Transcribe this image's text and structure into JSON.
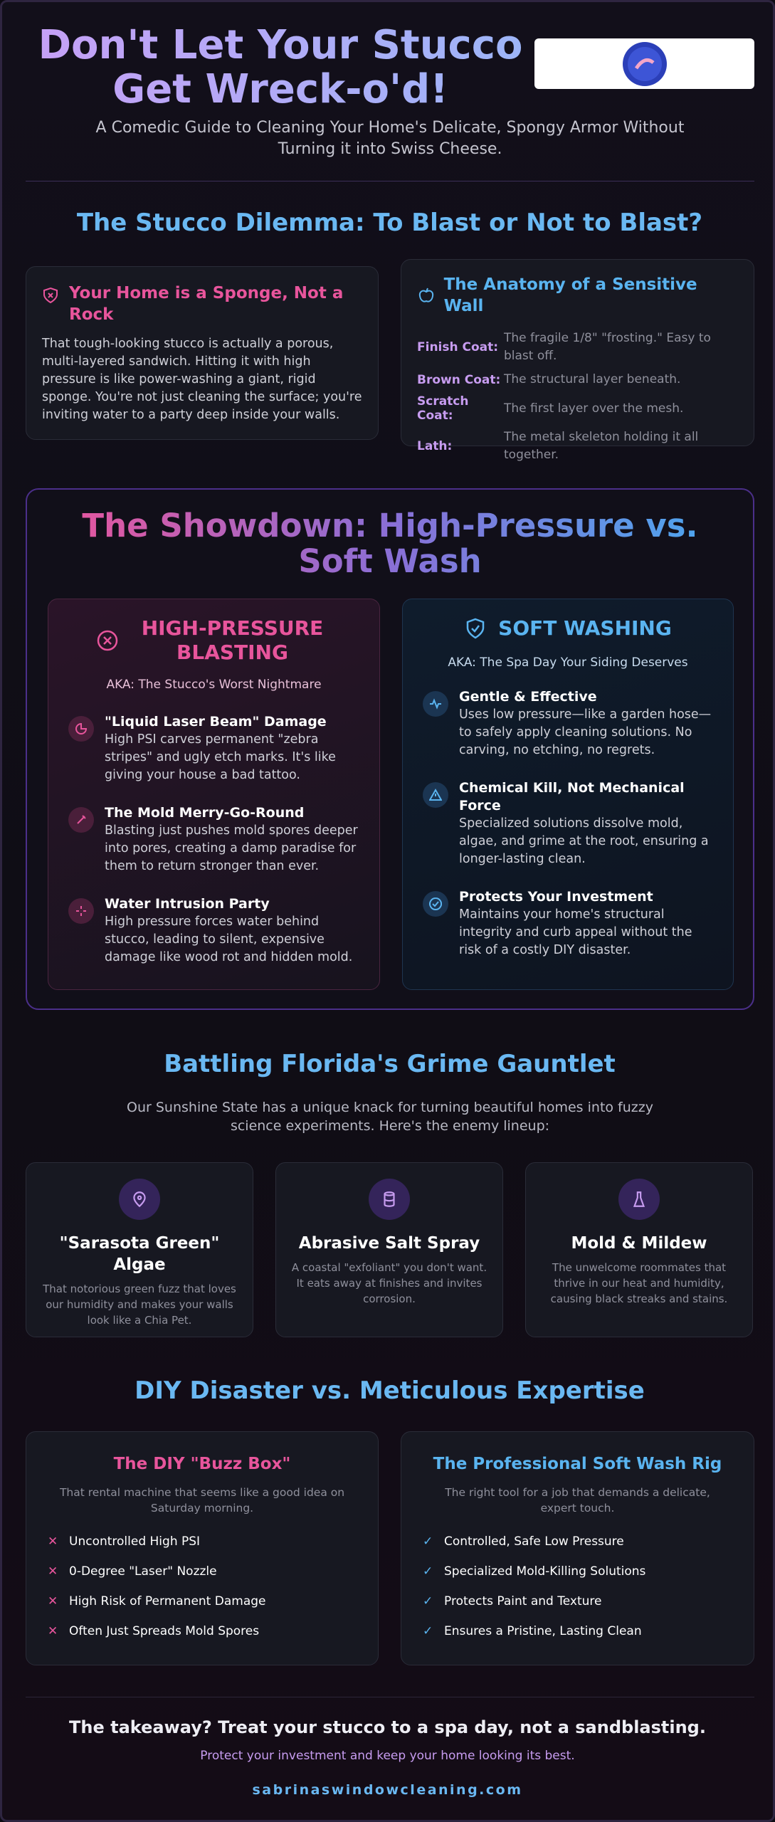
{
  "header": {
    "title": "Don't Let Your Stucco Get Wreck-o'd!",
    "subtitle": "A Comedic Guide to Cleaning Your Home's Delicate, Spongy Armor Without Turning it into Swiss Cheese."
  },
  "dilemma": {
    "heading": "The Stucco Dilemma: To Blast or Not to Blast?",
    "sponge": {
      "title": "Your Home is a Sponge, Not a Rock",
      "text": "That tough-looking stucco is actually a porous, multi-layered sandwich. Hitting it with high pressure is like power-washing a giant, rigid sponge. You're not just cleaning the surface; you're inviting water to a party deep inside your walls."
    },
    "anatomy": {
      "title": "The Anatomy of a Sensitive Wall",
      "layers": [
        {
          "name": "Finish Coat:",
          "desc": "The fragile 1/8\" \"frosting.\" Easy to blast off."
        },
        {
          "name": "Brown Coat:",
          "desc": "The structural layer beneath."
        },
        {
          "name": "Scratch Coat:",
          "desc": "The first layer over the mesh."
        },
        {
          "name": "Lath:",
          "desc": "The metal skeleton holding it all together."
        }
      ]
    }
  },
  "showdown": {
    "heading": "The Showdown: High-Pressure vs. Soft Wash",
    "pressure": {
      "title": "HIGH-PRESSURE BLASTING",
      "aka": "AKA: The Stucco's Worst Nightmare",
      "items": [
        {
          "title": "\"Liquid Laser Beam\" Damage",
          "text": "High PSI carves permanent \"zebra stripes\" and ugly etch marks. It's like giving your house a bad tattoo."
        },
        {
          "title": "The Mold Merry-Go-Round",
          "text": "Blasting just pushes mold spores deeper into pores, creating a damp paradise for them to return stronger than ever."
        },
        {
          "title": "Water Intrusion Party",
          "text": "High pressure forces water behind stucco, leading to silent, expensive damage like wood rot and hidden mold."
        }
      ]
    },
    "soft": {
      "title": "SOFT WASHING",
      "aka": "AKA: The Spa Day Your Siding Deserves",
      "items": [
        {
          "title": "Gentle & Effective",
          "text": "Uses low pressure—like a garden hose—to safely apply cleaning solutions. No carving, no etching, no regrets."
        },
        {
          "title": "Chemical Kill, Not Mechanical Force",
          "text": "Specialized solutions dissolve mold, algae, and grime at the root, ensuring a longer-lasting clean."
        },
        {
          "title": "Protects Your Investment",
          "text": "Maintains your home's structural integrity and curb appeal without the risk of a costly DIY disaster."
        }
      ]
    }
  },
  "florida": {
    "heading": "Battling Florida's Grime Gauntlet",
    "intro": "Our Sunshine State has a unique knack for turning beautiful homes into fuzzy science experiments. Here's the enemy lineup:",
    "threats": [
      {
        "title": "\"Sarasota Green\" Algae",
        "text": "That notorious green fuzz that loves our humidity and makes your walls look like a Chia Pet."
      },
      {
        "title": "Abrasive Salt Spray",
        "text": "A coastal \"exfoliant\" you don't want. It eats away at finishes and invites corrosion."
      },
      {
        "title": "Mold & Mildew",
        "text": "The unwelcome roommates that thrive in our heat and humidity, causing black streaks and stains."
      }
    ]
  },
  "diy": {
    "heading": "DIY Disaster vs. Meticulous Expertise",
    "diy": {
      "title": "The DIY \"Buzz Box\"",
      "subtitle": "That rental machine that seems like a good idea on Saturday morning.",
      "items": [
        "Uncontrolled High PSI",
        "0-Degree \"Laser\" Nozzle",
        "High Risk of Permanent Damage",
        "Often Just Spreads Mold Spores"
      ]
    },
    "pro": {
      "title": "The Professional Soft Wash Rig",
      "subtitle": "The right tool for a job that demands a delicate, expert touch.",
      "items": [
        "Controlled, Safe Low Pressure",
        "Specialized Mold-Killing Solutions",
        "Protects Paint and Texture",
        "Ensures a Pristine, Lasting Clean"
      ]
    }
  },
  "footer": {
    "takeaway": "The takeaway? Treat your stucco to a spa day, not a sandblasting.",
    "tagline": "Protect your investment and keep your home looking its best.",
    "website": "sabrinaswindowcleaning.com"
  }
}
